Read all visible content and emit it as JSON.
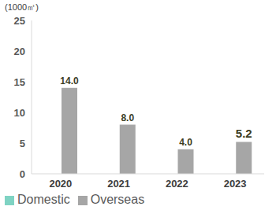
{
  "chart_data": {
    "type": "bar",
    "ylabel": "(1000㎥)",
    "categories": [
      "2020",
      "2021",
      "2022",
      "2023"
    ],
    "series": [
      {
        "name": "Domestic",
        "color": "#7fd3c3",
        "values": [
          0,
          0,
          0,
          0
        ]
      },
      {
        "name": "Overseas",
        "color": "#a6a6a6",
        "values": [
          14,
          8,
          4,
          5.2
        ],
        "value_labels": [
          "14.0",
          "8.0",
          "4.0",
          "5.2"
        ]
      }
    ],
    "ylim": [
      0,
      25
    ],
    "yticks": [
      0,
      5,
      10,
      15,
      20,
      25
    ],
    "grid": false,
    "legend": "bottom-left",
    "data_labels": true
  }
}
